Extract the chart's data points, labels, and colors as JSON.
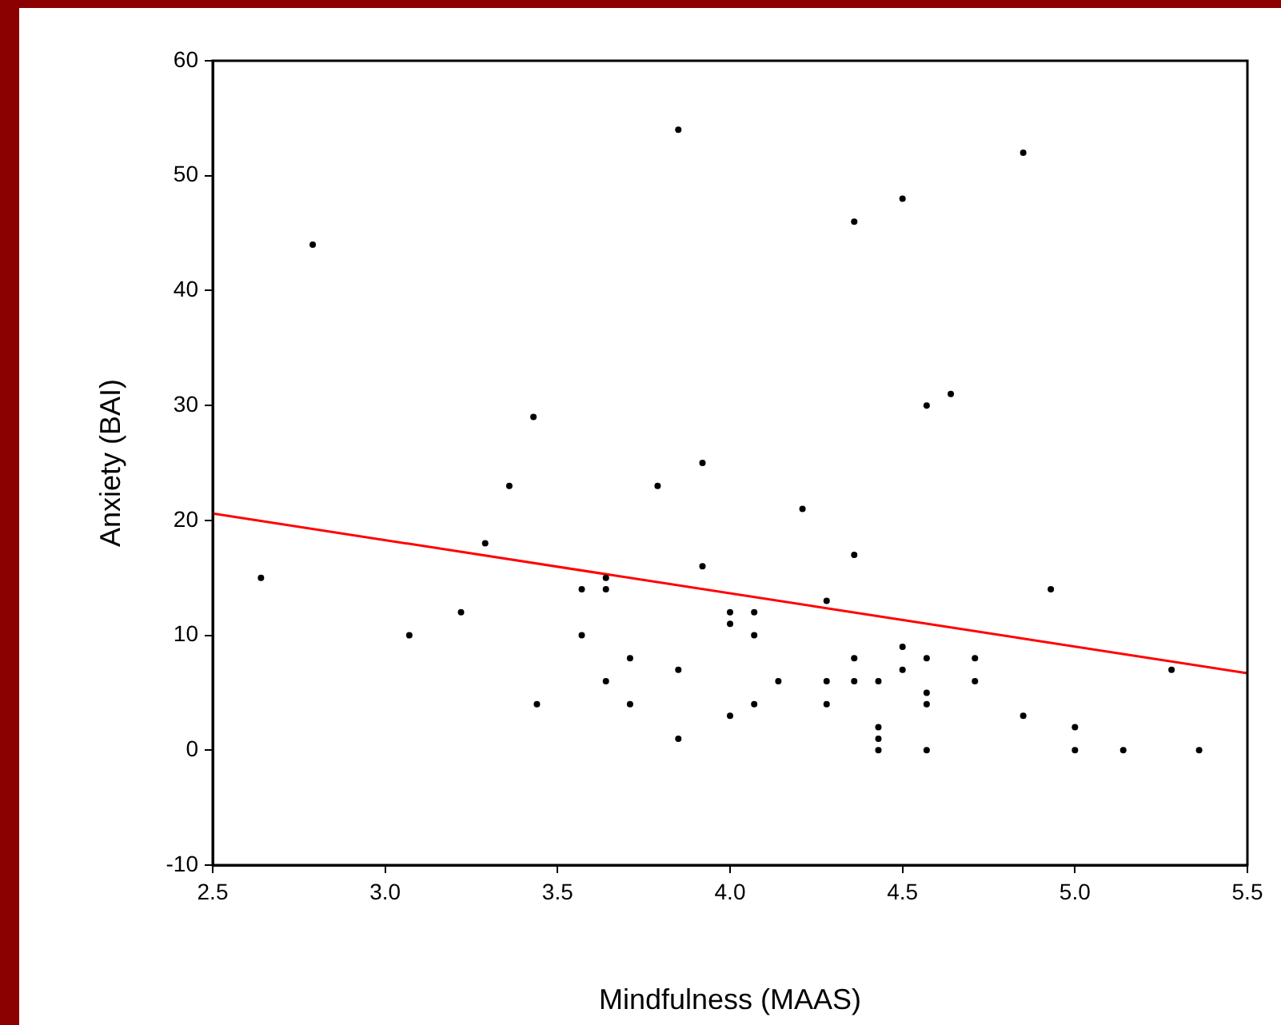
{
  "chart_data": {
    "type": "scatter",
    "xlabel": "Mindfulness (MAAS)",
    "ylabel": "Anxiety (BAI)",
    "xlim": [
      2.5,
      5.5
    ],
    "ylim": [
      -10,
      60
    ],
    "xticks": [
      {
        "value": 2.5,
        "label": "2.5"
      },
      {
        "value": 3,
        "label": "3.0"
      },
      {
        "value": 3.5,
        "label": "3.5"
      },
      {
        "value": 4,
        "label": "4.0"
      },
      {
        "value": 4.5,
        "label": "4.5"
      },
      {
        "value": 5,
        "label": "5.0"
      },
      {
        "value": 5.5,
        "label": "5.5"
      }
    ],
    "yticks": [
      -10,
      0,
      10,
      20,
      30,
      40,
      50,
      60
    ],
    "grid": false,
    "legend": false,
    "marker": "circle",
    "series": [
      {
        "color": "#000000",
        "x": [
          2.79,
          2.64,
          3.07,
          3.22,
          3.29,
          3.36,
          3.43,
          3.44,
          3.57,
          3.57,
          3.64,
          3.64,
          3.64,
          3.71,
          3.71,
          3.79,
          3.85,
          3.85,
          3.85,
          3.92,
          3.92,
          4.0,
          4.0,
          4.0,
          4.07,
          4.07,
          4.07,
          4.14,
          4.21,
          4.28,
          4.28,
          4.28,
          4.36,
          4.36,
          4.36,
          4.36,
          4.43,
          4.43,
          4.43,
          4.43,
          4.5,
          4.5,
          4.5,
          4.57,
          4.57,
          4.57,
          4.57,
          4.57,
          4.64,
          4.71,
          4.71,
          4.85,
          4.85,
          4.93,
          5.0,
          5.0,
          5.14,
          5.28,
          5.36
        ],
        "values": [
          44,
          15,
          10,
          12,
          18,
          23,
          29,
          4,
          14,
          10,
          15,
          14,
          6,
          8,
          4,
          23,
          54,
          7,
          1,
          25,
          16,
          12,
          11,
          3,
          12,
          10,
          4,
          6,
          21,
          13,
          6,
          4,
          17,
          8,
          6,
          46,
          6,
          2,
          1,
          0,
          9,
          7,
          48,
          8,
          5,
          4,
          0,
          30,
          31,
          8,
          6,
          52,
          3,
          14,
          2,
          0,
          0,
          7,
          0
        ]
      },
      {
        "type": "line",
        "color": "#ff0000",
        "marker": "none",
        "x": [
          2.5,
          5.5
        ],
        "values": [
          20.6,
          6.7
        ]
      }
    ]
  }
}
